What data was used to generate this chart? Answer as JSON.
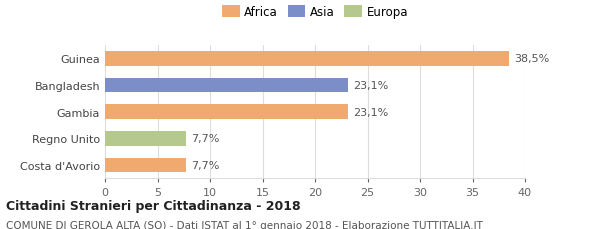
{
  "categories": [
    "Guinea",
    "Bangladesh",
    "Gambia",
    "Regno Unito",
    "Costa d'Avorio"
  ],
  "values": [
    38.5,
    23.1,
    23.1,
    7.7,
    7.7
  ],
  "colors": [
    "#f0a96e",
    "#7b8ec8",
    "#f0a96e",
    "#b5c98e",
    "#f0a96e"
  ],
  "labels": [
    "38,5%",
    "23,1%",
    "23,1%",
    "7,7%",
    "7,7%"
  ],
  "legend": [
    {
      "label": "Africa",
      "color": "#f0a96e"
    },
    {
      "label": "Asia",
      "color": "#7b8ec8"
    },
    {
      "label": "Europa",
      "color": "#b5c98e"
    }
  ],
  "xlim": [
    0,
    40
  ],
  "xticks": [
    0,
    5,
    10,
    15,
    20,
    25,
    30,
    35,
    40
  ],
  "title": "Cittadini Stranieri per Cittadinanza - 2018",
  "subtitle": "COMUNE DI GEROLA ALTA (SO) - Dati ISTAT al 1° gennaio 2018 - Elaborazione TUTTITALIA.IT",
  "title_fontsize": 9,
  "subtitle_fontsize": 7.5,
  "label_fontsize": 8,
  "tick_fontsize": 8,
  "bar_height": 0.55,
  "bg_color": "#ffffff",
  "grid_color": "#dddddd"
}
